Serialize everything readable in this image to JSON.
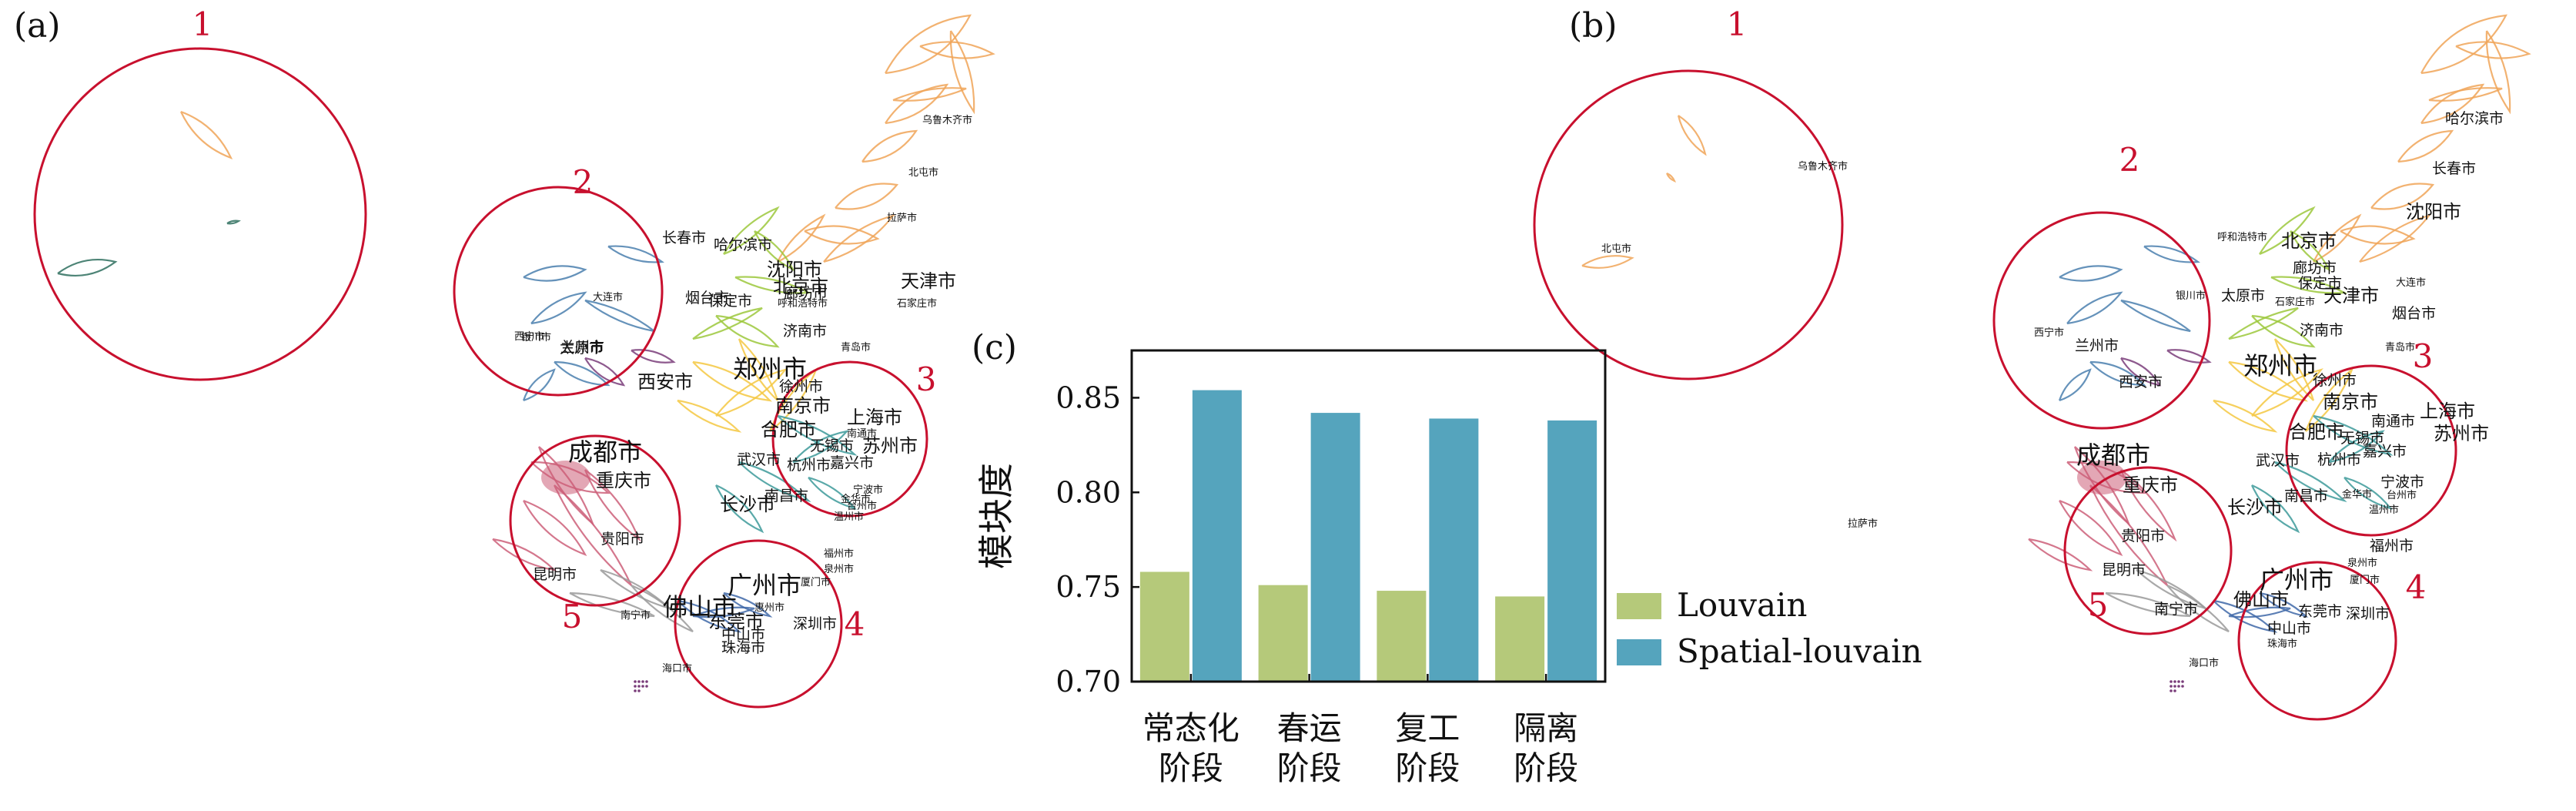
{
  "panels": {
    "a": "(a)",
    "b": "(b)",
    "c": "(c)"
  },
  "maps": [
    {
      "id": "a",
      "clusters": [
        "1",
        "2",
        "3",
        "4",
        "5"
      ],
      "cities": [
        {
          "name": "乌鲁木齐市",
          "size": "s"
        },
        {
          "name": "北屯市",
          "size": "s"
        },
        {
          "name": "拉萨市",
          "size": "s"
        },
        {
          "name": "哈尔滨市",
          "size": "m"
        },
        {
          "name": "长春市",
          "size": "m"
        },
        {
          "name": "沈阳市",
          "size": "l"
        },
        {
          "name": "北京市",
          "size": "l"
        },
        {
          "name": "呼和浩特市",
          "size": "s"
        },
        {
          "name": "廊坊市",
          "size": "m"
        },
        {
          "name": "保定市",
          "size": "m"
        },
        {
          "name": "天津市",
          "size": "l"
        },
        {
          "name": "石家庄市",
          "size": "s"
        },
        {
          "name": "大连市",
          "size": "s"
        },
        {
          "name": "烟台市",
          "size": "m"
        },
        {
          "name": "银川市",
          "size": "s"
        },
        {
          "name": "太原市",
          "size": "m"
        },
        {
          "name": "济南市",
          "size": "m"
        },
        {
          "name": "青岛市",
          "size": "s"
        },
        {
          "name": "西宁市",
          "size": "s"
        },
        {
          "name": "兰州市",
          "size": "m"
        },
        {
          "name": "郑州市",
          "size": "xl"
        },
        {
          "name": "西安市",
          "size": "l"
        },
        {
          "name": "徐州市",
          "size": "m"
        },
        {
          "name": "南京市",
          "size": "l"
        },
        {
          "name": "上海市",
          "size": "l"
        },
        {
          "name": "合肥市",
          "size": "l"
        },
        {
          "name": "南通市",
          "size": "s"
        },
        {
          "name": "苏州市",
          "size": "l"
        },
        {
          "name": "无锡市",
          "size": "m"
        },
        {
          "name": "成都市",
          "size": "xl"
        },
        {
          "name": "武汉市",
          "size": "m"
        },
        {
          "name": "杭州市",
          "size": "m"
        },
        {
          "name": "嘉兴市",
          "size": "m"
        },
        {
          "name": "重庆市",
          "size": "l"
        },
        {
          "name": "宁波市",
          "size": "s"
        },
        {
          "name": "长沙市",
          "size": "l"
        },
        {
          "name": "南昌市",
          "size": "m"
        },
        {
          "name": "金华市",
          "size": "s"
        },
        {
          "name": "台州市",
          "size": "s"
        },
        {
          "name": "温州市",
          "size": "s"
        },
        {
          "name": "贵阳市",
          "size": "m"
        },
        {
          "name": "福州市",
          "size": "s"
        },
        {
          "name": "昆明市",
          "size": "m"
        },
        {
          "name": "泉州市",
          "size": "s"
        },
        {
          "name": "厦门市",
          "size": "s"
        },
        {
          "name": "广州市",
          "size": "xl"
        },
        {
          "name": "佛山市",
          "size": "xl"
        },
        {
          "name": "南宁市",
          "size": "s"
        },
        {
          "name": "东莞市",
          "size": "l"
        },
        {
          "name": "惠州市",
          "size": "s"
        },
        {
          "name": "深圳市",
          "size": "m"
        },
        {
          "name": "中山市",
          "size": "m"
        },
        {
          "name": "珠海市",
          "size": "m"
        },
        {
          "name": "海口市",
          "size": "s"
        }
      ]
    },
    {
      "id": "b",
      "clusters": [
        "1",
        "2",
        "3",
        "4",
        "5"
      ],
      "cities": [
        {
          "name": "乌鲁木齐市",
          "size": "s"
        },
        {
          "name": "北屯市",
          "size": "s"
        },
        {
          "name": "拉萨市",
          "size": "s"
        },
        {
          "name": "哈尔滨市",
          "size": "m"
        },
        {
          "name": "长春市",
          "size": "m"
        },
        {
          "name": "沈阳市",
          "size": "l"
        },
        {
          "name": "呼和浩特市",
          "size": "s"
        },
        {
          "name": "北京市",
          "size": "l"
        },
        {
          "name": "廊坊市",
          "size": "m"
        },
        {
          "name": "保定市",
          "size": "m"
        },
        {
          "name": "大连市",
          "size": "s"
        },
        {
          "name": "银川市",
          "size": "s"
        },
        {
          "name": "太原市",
          "size": "m"
        },
        {
          "name": "石家庄市",
          "size": "s"
        },
        {
          "name": "天津市",
          "size": "l"
        },
        {
          "name": "烟台市",
          "size": "m"
        },
        {
          "name": "西宁市",
          "size": "s"
        },
        {
          "name": "兰州市",
          "size": "m"
        },
        {
          "name": "济南市",
          "size": "m"
        },
        {
          "name": "青岛市",
          "size": "s"
        },
        {
          "name": "郑州市",
          "size": "xl"
        },
        {
          "name": "西安市",
          "size": "m"
        },
        {
          "name": "徐州市",
          "size": "m"
        },
        {
          "name": "南京市",
          "size": "l"
        },
        {
          "name": "上海市",
          "size": "l"
        },
        {
          "name": "成都市",
          "size": "xl"
        },
        {
          "name": "合肥市",
          "size": "l"
        },
        {
          "name": "南通市",
          "size": "m"
        },
        {
          "name": "重庆市",
          "size": "l"
        },
        {
          "name": "无锡市",
          "size": "m"
        },
        {
          "name": "苏州市",
          "size": "l"
        },
        {
          "name": "武汉市",
          "size": "m"
        },
        {
          "name": "杭州市",
          "size": "m"
        },
        {
          "name": "嘉兴市",
          "size": "m"
        },
        {
          "name": "长沙市",
          "size": "l"
        },
        {
          "name": "南昌市",
          "size": "m"
        },
        {
          "name": "宁波市",
          "size": "m"
        },
        {
          "name": "台州市",
          "size": "s"
        },
        {
          "name": "金华市",
          "size": "s"
        },
        {
          "name": "温州市",
          "size": "s"
        },
        {
          "name": "贵阳市",
          "size": "m"
        },
        {
          "name": "福州市",
          "size": "m"
        },
        {
          "name": "泉州市",
          "size": "s"
        },
        {
          "name": "昆明市",
          "size": "m"
        },
        {
          "name": "厦门市",
          "size": "s"
        },
        {
          "name": "广州市",
          "size": "xl"
        },
        {
          "name": "佛山市",
          "size": "l"
        },
        {
          "name": "南宁市",
          "size": "m"
        },
        {
          "name": "东莞市",
          "size": "m"
        },
        {
          "name": "深圳市",
          "size": "m"
        },
        {
          "name": "中山市",
          "size": "m"
        },
        {
          "name": "珠海市",
          "size": "s"
        },
        {
          "name": "海口市",
          "size": "s"
        }
      ]
    }
  ],
  "colors": {
    "cluster_circle": "#c8102e",
    "louvain": "#b5c97a",
    "spatial": "#55a4bd",
    "ne_orange": "#f0a558",
    "n_green": "#9cc83c",
    "c_yellow": "#f5c842",
    "w_blue": "#4a7fae",
    "e_teal": "#3d9a9a",
    "sw_red": "#cc5f79",
    "s_gray": "#9a9a9a",
    "s_blue": "#3f69a8",
    "purple": "#7a3d7a",
    "dark_teal": "#2e6e5e"
  },
  "chart_data": {
    "type": "bar",
    "categories": [
      [
        "常态化",
        "阶段"
      ],
      [
        "春运",
        "阶段"
      ],
      [
        "复工",
        "阶段"
      ],
      [
        "隔离",
        "阶段"
      ]
    ],
    "series": [
      {
        "name": "Louvain",
        "values": [
          0.758,
          0.751,
          0.748,
          0.745
        ]
      },
      {
        "name": "Spatial-louvain",
        "values": [
          0.854,
          0.842,
          0.839,
          0.838
        ]
      }
    ],
    "ylabel": "模块度",
    "ylim": [
      0.7,
      0.875
    ],
    "yticks": [
      "0.70",
      "0.75",
      "0.80",
      "0.85"
    ],
    "legend_position": "right"
  }
}
